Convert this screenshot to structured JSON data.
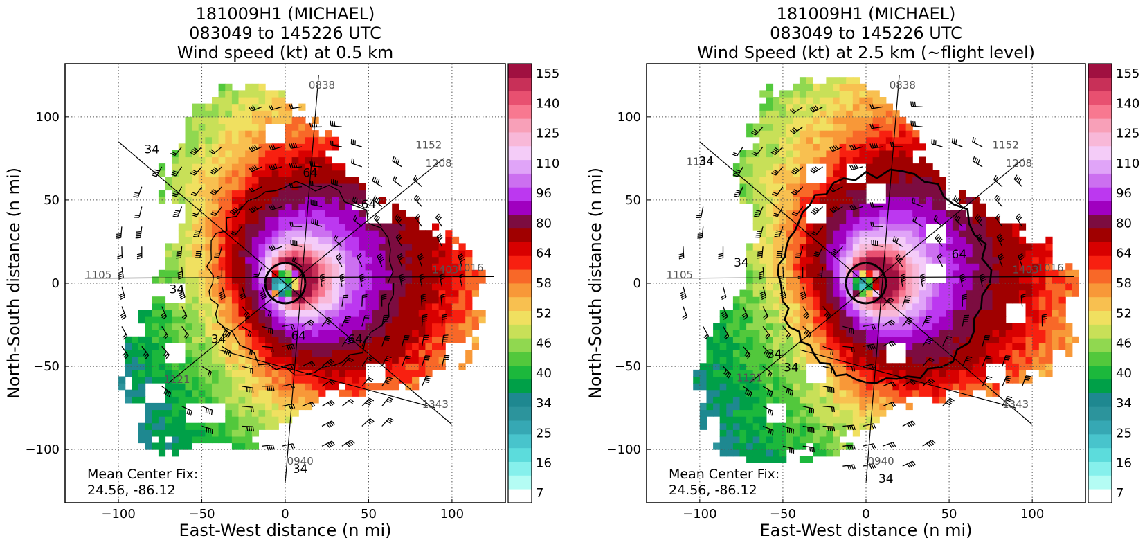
{
  "chart_data": [
    {
      "type": "heatmap",
      "title_lines": [
        "181009H1 (MICHAEL)",
        "083049 to 145226 UTC",
        "Wind speed (kt) at 0.5 km"
      ],
      "xlabel": "East-West distance (n mi)",
      "ylabel": "North-South distance (n mi)",
      "xlim": [
        -132,
        132
      ],
      "ylim": [
        -132,
        132
      ],
      "xticks": [
        -100,
        -50,
        0,
        50,
        100
      ],
      "yticks": [
        -100,
        -50,
        0,
        50,
        100
      ],
      "xtick_labels": [
        "−100",
        "−50",
        "0",
        "50",
        "100"
      ],
      "ytick_labels": [
        "−100",
        "−50",
        "0",
        "50",
        "100"
      ],
      "grid": true,
      "annotation_lines": [
        "Mean Center Fix:",
        "24.56, -86.12"
      ],
      "track_labels": [
        {
          "text": "0838",
          "x": 22,
          "y": 117
        },
        {
          "text": "1152",
          "x": 86,
          "y": 81
        },
        {
          "text": "1208",
          "x": 92,
          "y": 70
        },
        {
          "text": "1105",
          "x": -112,
          "y": 3
        },
        {
          "text": "1403",
          "x": 96,
          "y": 6
        },
        {
          "text": "1016",
          "x": 111,
          "y": 7
        },
        {
          "text": "1121",
          "x": -65,
          "y": -60
        },
        {
          "text": "1343",
          "x": 90,
          "y": -75
        },
        {
          "text": "0940",
          "x": 9,
          "y": -109
        }
      ],
      "contour_labels": [
        {
          "text": "34",
          "x": -80,
          "y": 78
        },
        {
          "text": "64",
          "x": 15,
          "y": 64
        },
        {
          "text": "64",
          "x": 50,
          "y": 45
        },
        {
          "text": "34",
          "x": -65,
          "y": -6
        },
        {
          "text": "34",
          "x": -40,
          "y": -36
        },
        {
          "text": "64",
          "x": 8,
          "y": -34
        },
        {
          "text": "64",
          "x": 42,
          "y": -36
        },
        {
          "text": "34",
          "x": 9,
          "y": -114
        }
      ],
      "wind_field": {
        "eye_x": 0,
        "eye_y": 0,
        "eye_radius": 7,
        "rmw": 12,
        "max_kt": 150,
        "outer_limit": 122
      }
    },
    {
      "type": "heatmap",
      "title_lines": [
        "181009H1 (MICHAEL)",
        "083049 to 145226 UTC",
        "Wind Speed (kt) at 2.5 km (~flight level)"
      ],
      "xlabel": "East-West distance (n mi)",
      "ylabel": "North-South distance (n mi)",
      "xlim": [
        -132,
        132
      ],
      "ylim": [
        -132,
        132
      ],
      "xticks": [
        -100,
        -50,
        0,
        50,
        100
      ],
      "yticks": [
        -100,
        -50,
        0,
        50,
        100
      ],
      "xtick_labels": [
        "−100",
        "−50",
        "0",
        "50",
        "100"
      ],
      "ytick_labels": [
        "−100",
        "−50",
        "0",
        "50",
        "100"
      ],
      "grid": true,
      "annotation_lines": [
        "Mean Center Fix:",
        "24.56, -86.12"
      ],
      "track_labels": [
        {
          "text": "0838",
          "x": 22,
          "y": 117
        },
        {
          "text": "1152",
          "x": 84,
          "y": 81
        },
        {
          "text": "1208",
          "x": 92,
          "y": 70
        },
        {
          "text": "1105",
          "x": -112,
          "y": 3
        },
        {
          "text": "1144",
          "x": -100,
          "y": 71
        },
        {
          "text": "1403",
          "x": 96,
          "y": 6
        },
        {
          "text": "1016",
          "x": 111,
          "y": 7
        },
        {
          "text": "1121",
          "x": -70,
          "y": -59
        },
        {
          "text": "1343",
          "x": 90,
          "y": -75
        },
        {
          "text": "0940",
          "x": 9,
          "y": -109
        }
      ],
      "contour_labels": [
        {
          "text": "34",
          "x": -96,
          "y": 71
        },
        {
          "text": "34",
          "x": -75,
          "y": 10
        },
        {
          "text": "64",
          "x": 56,
          "y": 15
        },
        {
          "text": "34",
          "x": -55,
          "y": -45
        },
        {
          "text": "34",
          "x": -45,
          "y": -53
        },
        {
          "text": "34",
          "x": 12,
          "y": -120
        }
      ],
      "wind_field": {
        "eye_x": 0,
        "eye_y": 0,
        "eye_radius": 6,
        "rmw": 11,
        "max_kt": 150,
        "outer_limit": 128
      }
    }
  ],
  "colorbar": {
    "levels": [
      7,
      10,
      13,
      16,
      19,
      22,
      25,
      28,
      31,
      34,
      37,
      40,
      43,
      46,
      49,
      52,
      55,
      58,
      61,
      64,
      72,
      80,
      88,
      96,
      103,
      110,
      118,
      125,
      132,
      140,
      147,
      155
    ],
    "tick_labels": [
      "155",
      "140",
      "125",
      "110",
      "96",
      "80",
      "64",
      "58",
      "52",
      "46",
      "40",
      "34",
      "25",
      "16",
      "7"
    ],
    "colors": [
      "#ffffff",
      "#b4fcf4",
      "#86f0ec",
      "#5cdcdc",
      "#48c4cc",
      "#36a8b4",
      "#2c949c",
      "#1e8890",
      "#00a048",
      "#1cb83c",
      "#52c83c",
      "#90d850",
      "#c8e058",
      "#f0e060",
      "#f8c050",
      "#f89838",
      "#f86828",
      "#f82010",
      "#d80000",
      "#a00000",
      "#7c0c40",
      "#a000c0",
      "#bc38f0",
      "#cc70f0",
      "#e0a4f8",
      "#f4ccf8",
      "#f8b8d8",
      "#f8a0b8",
      "#f87890",
      "#e85070",
      "#c83058",
      "#a01040"
    ]
  }
}
